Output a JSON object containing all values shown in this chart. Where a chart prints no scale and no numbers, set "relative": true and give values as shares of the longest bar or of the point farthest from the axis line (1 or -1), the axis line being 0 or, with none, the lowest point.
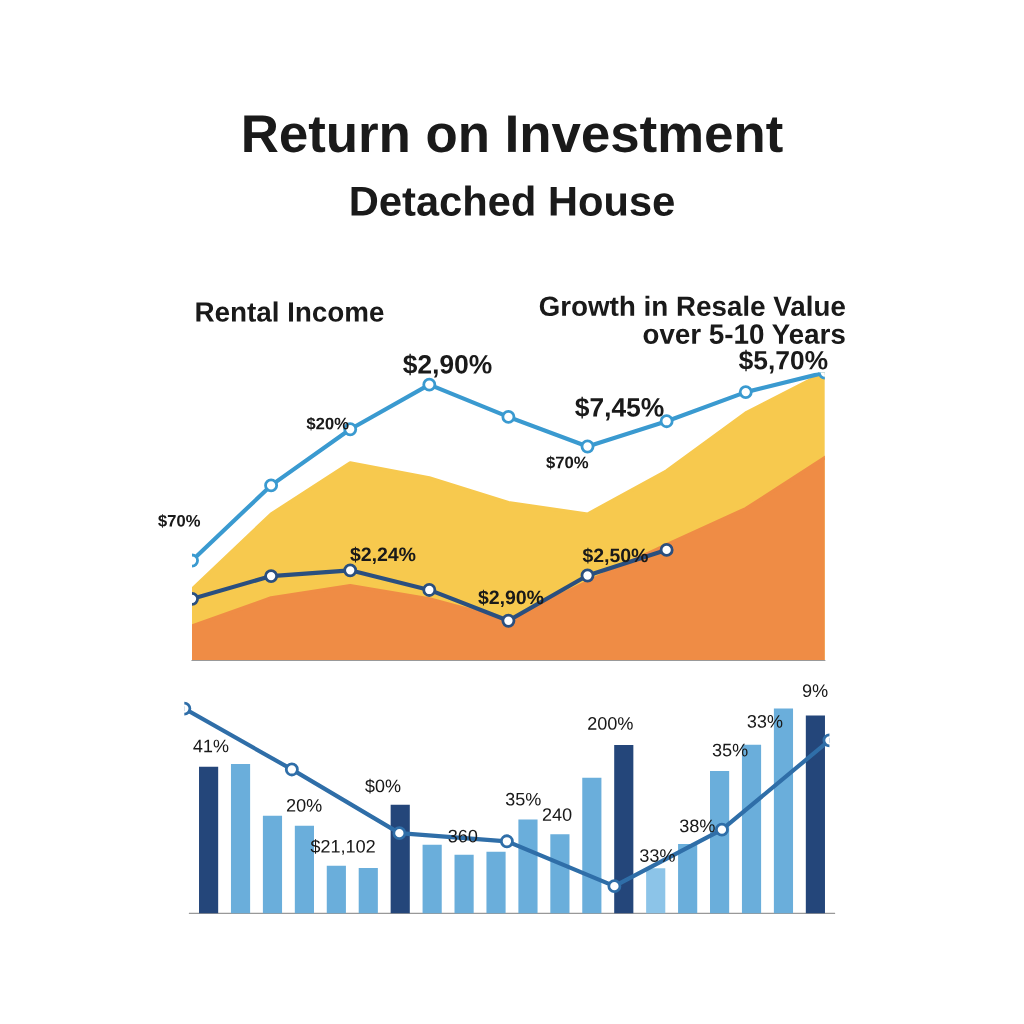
{
  "chart_data": [
    {
      "type": "area",
      "title": "Return on Investment",
      "subtitle": "Detached House",
      "relative": true,
      "categories": [
        null,
        null,
        null,
        null,
        null,
        null,
        null,
        null,
        null
      ],
      "series": [
        {
          "color": "#f7c94e",
          "values": [
            0.247,
            0.508,
            0.686,
            0.634,
            0.548,
            0.508,
            0.658,
            0.859,
            1.0
          ]
        },
        {
          "color": "#ef8c45",
          "values": [
            0.119,
            0.217,
            0.26,
            0.214,
            0.14,
            0.273,
            0.402,
            0.527,
            0.704
          ]
        }
      ],
      "annotations": [
        "Rental Income",
        "Growth in Resale Value\nover 5-10 Years"
      ]
    },
    {
      "type": "line",
      "relative": true,
      "marker": "circle",
      "categories": [
        null,
        null,
        null,
        null,
        null,
        null,
        null,
        null,
        null
      ],
      "series": [
        {
          "color": "#3a9ad0",
          "values": [
            0.347,
            0.608,
            0.803,
            0.958,
            0.846,
            0.743,
            0.831,
            0.932,
            1.0
          ]
        },
        {
          "color": "#2a4f7f",
          "values": [
            0.214,
            0.293,
            0.313,
            0.245,
            0.138,
            0.295,
            0.384,
            null,
            null
          ]
        }
      ],
      "annotations": [
        "$70%",
        "$20%",
        "$2,90%",
        "$70%",
        "$7,45%",
        "$5,70%",
        "$2,24%",
        "$2,90%",
        "$2,50%"
      ]
    },
    {
      "type": "bar",
      "relative": true,
      "categories": [
        null,
        null,
        null,
        null,
        null,
        null,
        null,
        null,
        null,
        null,
        null,
        null,
        null,
        null,
        null,
        null,
        null,
        null,
        null,
        null
      ],
      "series": [
        {
          "values": [
            0.716,
            0.729,
            0.477,
            0.428,
            0.233,
            0.222,
            0.53,
            0.335,
            0.286,
            0.301,
            0.458,
            0.386,
            0.663,
            0.822,
            0.22,
            0.339,
            0.695,
            0.824,
            1.0,
            0.966
          ],
          "colors": [
            "#24467a",
            "#6aaedb",
            "#6aaedb",
            "#6aaedb",
            "#6aaedb",
            "#6aaedb",
            "#24467a",
            "#6aaedb",
            "#6aaedb",
            "#6aaedb",
            "#6aaedb",
            "#6aaedb",
            "#6aaedb",
            "#24467a",
            "#8cc4e8",
            "#6aaedb",
            "#6aaedb",
            "#6aaedb",
            "#6aaedb",
            "#24467a"
          ]
        }
      ],
      "annotations": [
        "41%",
        "20%",
        "$21,102",
        "$0%",
        "360",
        "35%",
        "240",
        "200%",
        "33%",
        "38%",
        "35%",
        "33%",
        "9%"
      ]
    },
    {
      "type": "line",
      "relative": true,
      "marker": "circle",
      "categories": [
        null,
        null,
        null,
        null,
        null,
        null,
        null
      ],
      "series": [
        {
          "color": "#2f6ea8",
          "values": [
            1.0,
            0.703,
            0.392,
            0.352,
            0.133,
            0.409,
            0.845
          ]
        }
      ]
    }
  ]
}
